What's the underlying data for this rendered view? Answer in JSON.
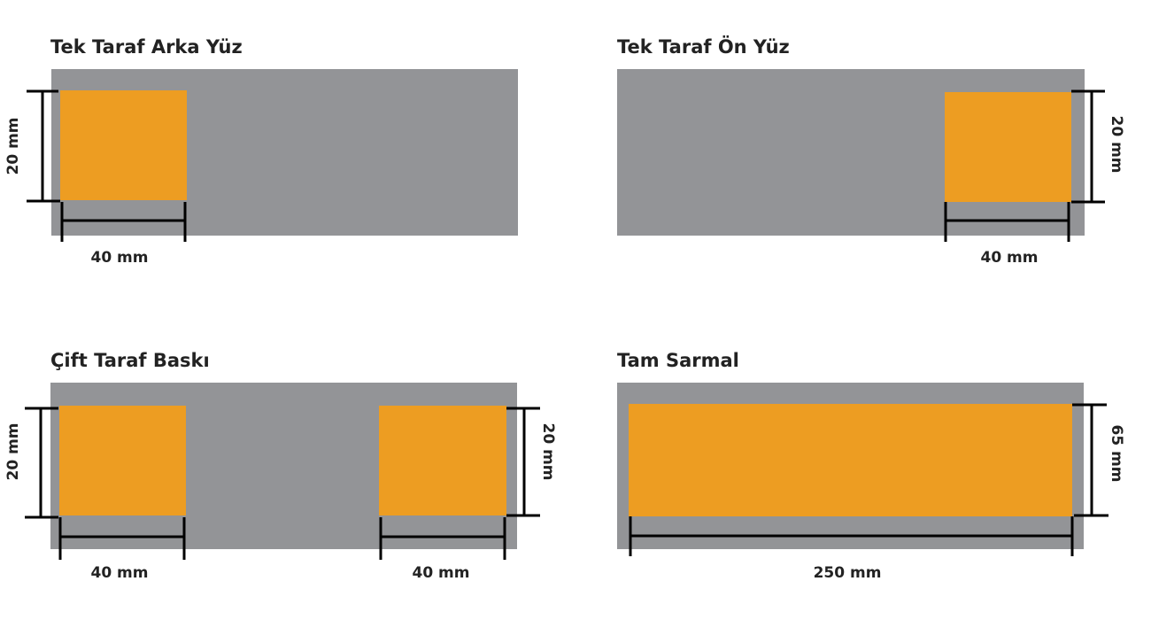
{
  "colors": {
    "sheet": "#939497",
    "print_area": "#ED9D22",
    "dimension_line": "#000000"
  },
  "panels": [
    {
      "title": "Tek Taraf Arka Yüz",
      "height_label": "20 mm",
      "width_label": "40 mm"
    },
    {
      "title": "Tek Taraf Ön Yüz",
      "height_label": "20 mm",
      "width_label": "40 mm"
    },
    {
      "title": "Çift Taraf Baskı",
      "height_label_left": "20 mm",
      "height_label_right": "20 mm",
      "width_label_left": "40 mm",
      "width_label_right": "40 mm"
    },
    {
      "title": "Tam Sarmal",
      "height_label": "65 mm",
      "width_label": "250 mm"
    }
  ]
}
